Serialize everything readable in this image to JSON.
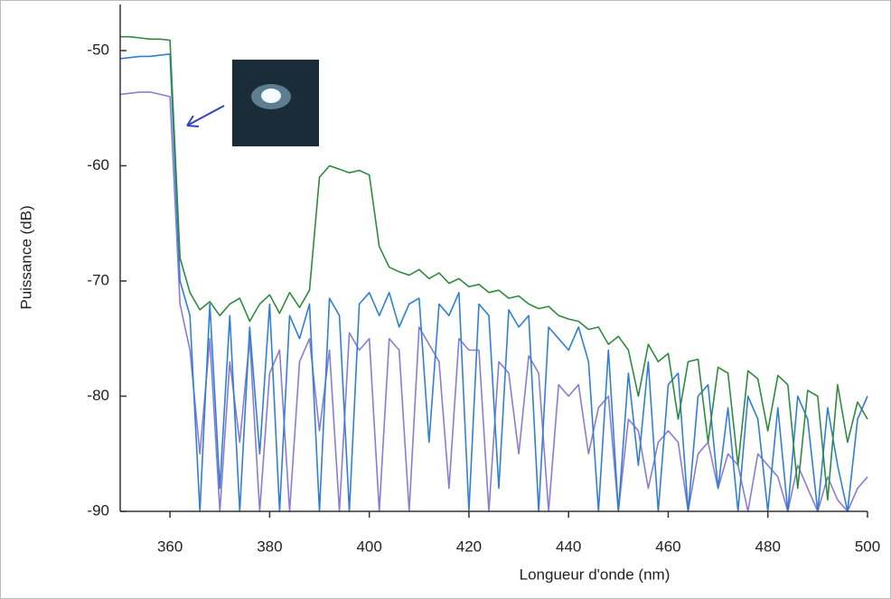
{
  "chart_data": {
    "type": "line",
    "x_label": "Longueur d'onde (nm)",
    "y_label": "Puissance (dB)",
    "xlim": [
      350,
      500
    ],
    "xticks": [
      360,
      380,
      400,
      420,
      440,
      460,
      480,
      500
    ],
    "ylim": [
      -90,
      -46
    ],
    "yticks": [
      -90,
      -80,
      -70,
      -60,
      -50
    ],
    "x": [
      350,
      352,
      354,
      356,
      358,
      360,
      362,
      364,
      366,
      368,
      370,
      372,
      374,
      376,
      378,
      380,
      382,
      384,
      386,
      388,
      390,
      392,
      394,
      396,
      398,
      400,
      402,
      404,
      406,
      408,
      410,
      412,
      414,
      416,
      418,
      420,
      422,
      424,
      426,
      428,
      430,
      432,
      434,
      436,
      438,
      440,
      442,
      444,
      446,
      448,
      450,
      452,
      454,
      456,
      458,
      460,
      462,
      464,
      466,
      468,
      470,
      472,
      474,
      476,
      478,
      480,
      482,
      484,
      486,
      488,
      490,
      492,
      494,
      496,
      498,
      500
    ],
    "series": [
      {
        "color": "#2e8b3e",
        "values": [
          -48.8,
          -48.8,
          -48.9,
          -49,
          -49,
          -49.1,
          -68,
          -71,
          -72.5,
          -71.8,
          -73,
          -72,
          -71.5,
          -73.5,
          -72,
          -71.2,
          -72.8,
          -71,
          -72.3,
          -70.8,
          -61,
          -60,
          -60.3,
          -60.6,
          -60.4,
          -60.8,
          -67,
          -68.8,
          -69.2,
          -69.5,
          -69,
          -69.8,
          -69.3,
          -70.2,
          -69.8,
          -70.5,
          -70.3,
          -71,
          -70.8,
          -71.5,
          -71.3,
          -72,
          -72.4,
          -72.2,
          -73,
          -73.3,
          -73.5,
          -74.2,
          -74,
          -75.5,
          -74.8,
          -76,
          -80,
          -75.5,
          -77,
          -76.3,
          -82,
          -77,
          -76.8,
          -84,
          -77.5,
          -78,
          -86,
          -77.8,
          -78.5,
          -83,
          -78.2,
          -79,
          -88,
          -79.5,
          -80,
          -89,
          -79,
          -84,
          -80.5,
          -82
        ]
      },
      {
        "color": "#2f7fd6",
        "values": [
          -50.7,
          -50.6,
          -50.5,
          -50.5,
          -50.4,
          -50.3,
          -70,
          -73,
          -90,
          -72,
          -88,
          -73,
          -90,
          -74,
          -85,
          -72,
          -90,
          -73,
          -75,
          -72,
          -90,
          -71.5,
          -73,
          -90,
          -72,
          -71,
          -73,
          -71,
          -74,
          -72,
          -71.5,
          -84,
          -72,
          -73,
          -71,
          -90,
          -72,
          -73,
          -88,
          -72.5,
          -74,
          -73,
          -90,
          -74,
          -75,
          -76,
          -74,
          -77,
          -90,
          -76,
          -90,
          -78,
          -86,
          -77,
          -90,
          -79,
          -78,
          -90,
          -80,
          -79,
          -88,
          -81,
          -90,
          -80,
          -82,
          -90,
          -81,
          -90,
          -80,
          -82,
          -90,
          -81,
          -86,
          -90,
          -82,
          -80
        ]
      },
      {
        "color": "#8a7cd6",
        "values": [
          -53.8,
          -53.7,
          -53.6,
          -53.6,
          -53.8,
          -54,
          -72,
          -76,
          -85,
          -75,
          -90,
          -77,
          -84,
          -75,
          -90,
          -78,
          -76,
          -90,
          -77,
          -75,
          -83,
          -76,
          -90,
          -74.5,
          -76,
          -75,
          -90,
          -75,
          -76,
          -90,
          -74,
          -75.5,
          -77,
          -88,
          -75,
          -76,
          -76,
          -90,
          -77,
          -78,
          -85,
          -76.5,
          -78,
          -90,
          -79,
          -80,
          -79,
          -85,
          -81,
          -80,
          -90,
          -82,
          -83,
          -88,
          -84,
          -83,
          -84,
          -90,
          -85,
          -84,
          -88,
          -85,
          -86,
          -90,
          -85,
          -86,
          -87,
          -90,
          -86,
          -88,
          -90,
          -87,
          -89,
          -90,
          -88,
          -87
        ]
      }
    ]
  }
}
